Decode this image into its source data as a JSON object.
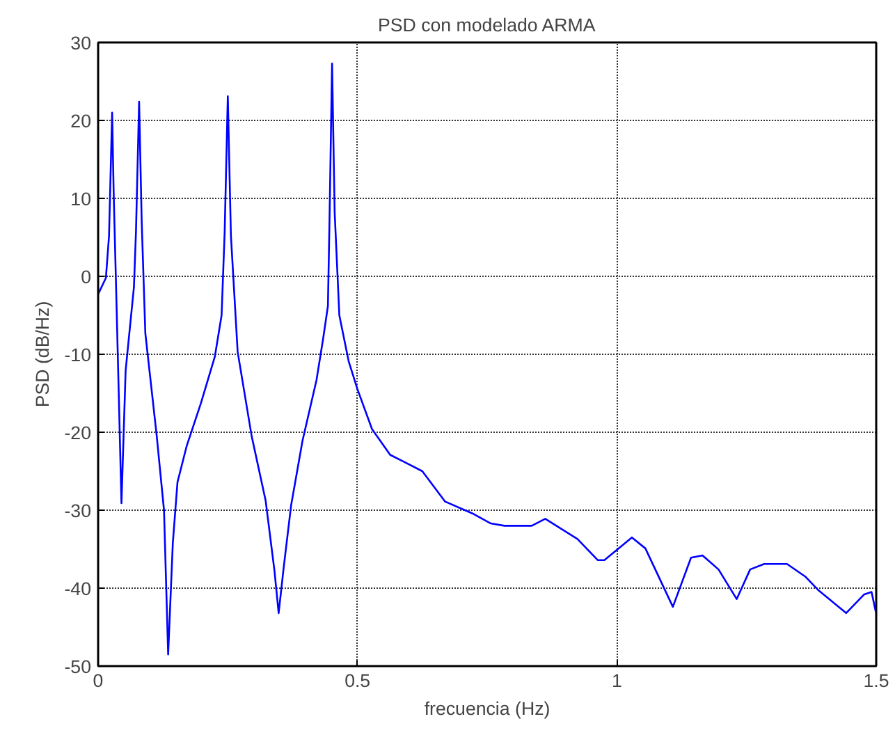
{
  "chart_data": {
    "type": "line",
    "title": "PSD con modelado ARMA",
    "xlabel": "frecuencia (Hz)",
    "ylabel": "PSD (dB/Hz)",
    "xlim": [
      0,
      1.5
    ],
    "ylim": [
      -50,
      30
    ],
    "xticks": [
      0,
      0.5,
      1,
      1.5
    ],
    "yticks": [
      -50,
      -40,
      -30,
      -20,
      -10,
      0,
      10,
      20,
      30
    ],
    "grid": true,
    "line_style": "solid",
    "series": [
      {
        "color": "#0000ff",
        "x": [
          0,
          0.015,
          0.021,
          0.027,
          0.03,
          0.036,
          0.045,
          0.053,
          0.069,
          0.073,
          0.079,
          0.084,
          0.091,
          0.1,
          0.113,
          0.127,
          0.135,
          0.144,
          0.153,
          0.171,
          0.198,
          0.225,
          0.238,
          0.244,
          0.25,
          0.256,
          0.269,
          0.296,
          0.323,
          0.34,
          0.348,
          0.358,
          0.372,
          0.394,
          0.421,
          0.434,
          0.443,
          0.446,
          0.451,
          0.456,
          0.465,
          0.483,
          0.5,
          0.528,
          0.563,
          0.59,
          0.625,
          0.669,
          0.721,
          0.757,
          0.783,
          0.836,
          0.862,
          0.924,
          0.963,
          0.976,
          1.029,
          1.055,
          1.108,
          1.143,
          1.165,
          1.196,
          1.231,
          1.257,
          1.284,
          1.328,
          1.363,
          1.389,
          1.442,
          1.477,
          1.491,
          1.5
        ],
        "values": [
          -2.3,
          -0.2,
          5.2,
          21,
          10.6,
          -5,
          -29.1,
          -12.1,
          -1.4,
          5.8,
          22.4,
          7,
          -7.3,
          -12.7,
          -20.5,
          -30,
          -48.5,
          -34.2,
          -26.4,
          -21.7,
          -16.3,
          -10.3,
          -5,
          5.8,
          23.1,
          5.2,
          -9.7,
          -20.5,
          -28.8,
          -37.8,
          -43.2,
          -37.2,
          -29.4,
          -21.1,
          -13.3,
          -7.9,
          -3.8,
          7,
          27.3,
          8.2,
          -5,
          -10.9,
          -14.5,
          -19.6,
          -22.9,
          -23.8,
          -25,
          -28.9,
          -30.4,
          -31.7,
          -32,
          -32,
          -31.1,
          -33.7,
          -36.4,
          -36.4,
          -33.5,
          -34.9,
          -42.4,
          -36.1,
          -35.8,
          -37.6,
          -41.4,
          -37.6,
          -36.9,
          -36.9,
          -38.5,
          -40.3,
          -43.2,
          -40.8,
          -40.5,
          -43.3
        ]
      }
    ]
  }
}
